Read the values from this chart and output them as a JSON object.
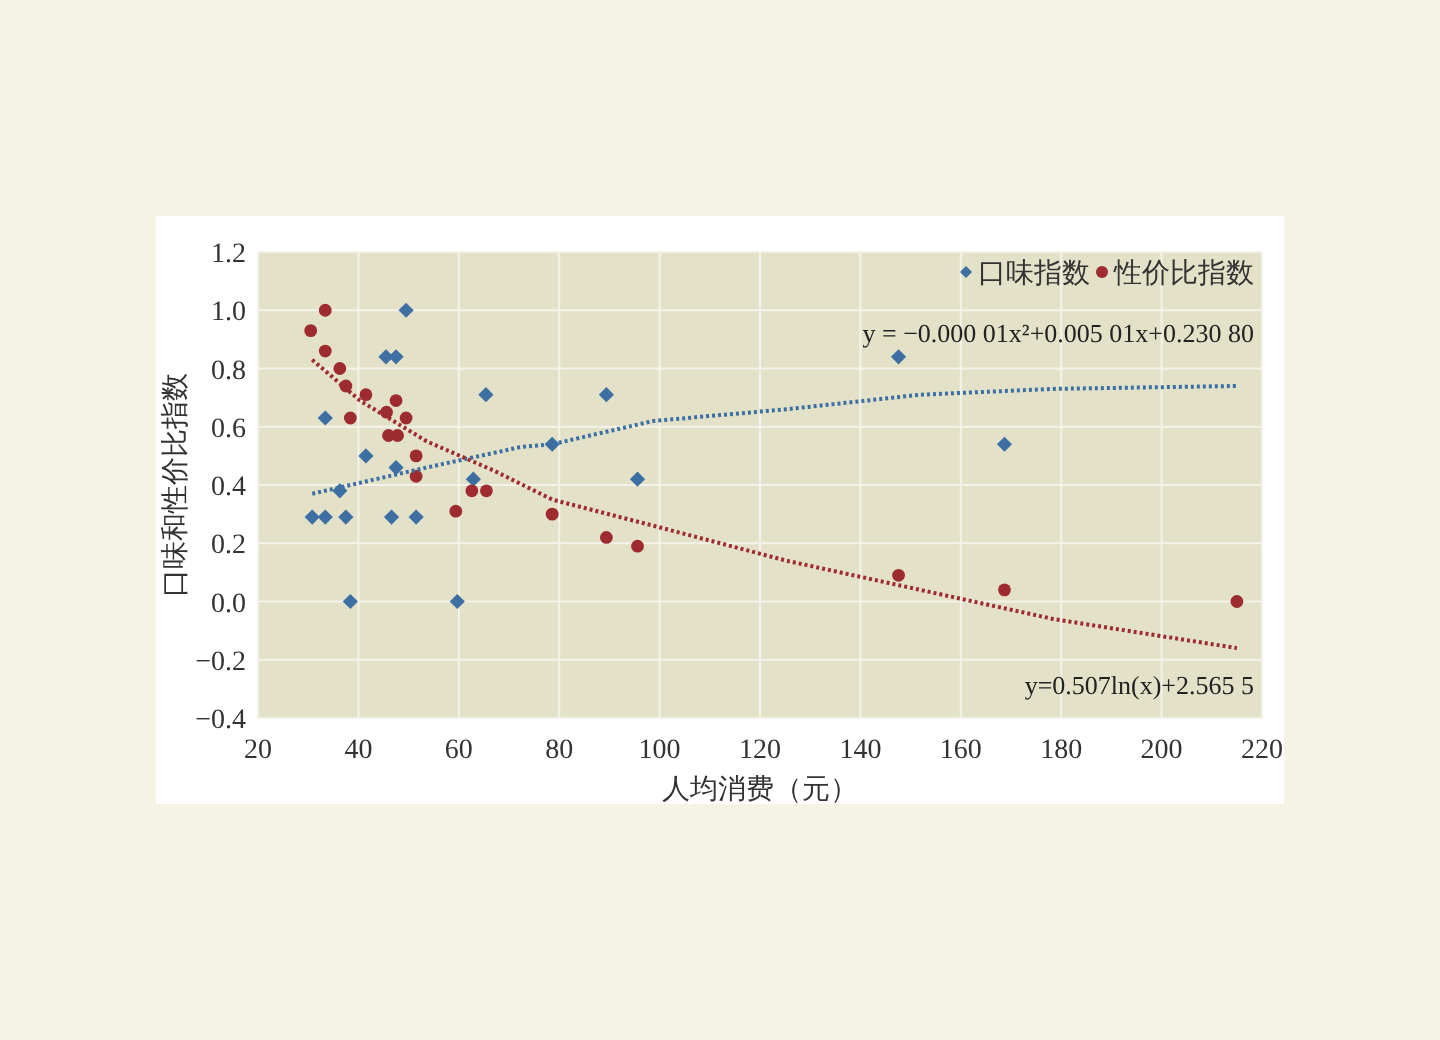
{
  "chart_data": {
    "type": "scatter",
    "xlabel": "人均消费（元）",
    "ylabel": "口味和性价比指数",
    "xlim": [
      20,
      220
    ],
    "xticks": [
      20,
      40,
      60,
      80,
      100,
      120,
      140,
      160,
      180,
      200,
      220
    ],
    "ylim": [
      -0.4,
      1.2
    ],
    "yticks": [
      {
        "value": -0.4,
        "label": "−0.4"
      },
      {
        "value": -0.2,
        "label": "−0.2"
      },
      {
        "value": 0,
        "label": "0.0"
      },
      {
        "value": 0.2,
        "label": "0.2"
      },
      {
        "value": 0.4,
        "label": "0.4"
      },
      {
        "value": 0.6,
        "label": "0.6"
      },
      {
        "value": 0.8,
        "label": "0.8"
      },
      {
        "value": 1,
        "label": "1.0"
      },
      {
        "value": 1.2,
        "label": "1.2"
      }
    ],
    "grid": true,
    "legend": "top right",
    "series": [
      {
        "name": "口味指数",
        "color": "#3d6fa3",
        "marker": "diamond",
        "x": [
          30.8,
          33.4,
          33.4,
          37.5,
          36.3,
          38.4,
          41.5,
          45.5,
          47.5,
          46.6,
          47.5,
          49.5,
          51.5,
          59.7,
          62.9,
          65.4,
          78.6,
          89.4,
          95.6,
          147.6,
          168.7
        ],
        "values": [
          0.29,
          0.29,
          0.63,
          0.29,
          0.38,
          0,
          0.5,
          0.84,
          0.84,
          0.29,
          0.46,
          1.0,
          0.29,
          0,
          0.42,
          0.71,
          0.54,
          0.71,
          0.42,
          0.84,
          0.54
        ]
      },
      {
        "name": "性价比指数",
        "color": "#9e2b30",
        "marker": "circle",
        "x": [
          30.5,
          33.4,
          33.4,
          36.3,
          37.5,
          38.4,
          41.5,
          45.6,
          47.5,
          46.0,
          47.8,
          49.5,
          51.5,
          51.5,
          59.4,
          62.6,
          65.5,
          78.6,
          89.4,
          95.6,
          147.6,
          168.7,
          215
        ],
        "values": [
          0.93,
          1.0,
          0.86,
          0.8,
          0.74,
          0.63,
          0.71,
          0.65,
          0.69,
          0.57,
          0.57,
          0.63,
          0.5,
          0.43,
          0.31,
          0.38,
          0.38,
          0.3,
          0.22,
          0.19,
          0.09,
          0.04,
          0.0
        ]
      },
      {
        "type": "line",
        "color": "#3d6fa3",
        "line_style": "dotted",
        "marker": "none",
        "x": [
          30.8,
          53.6,
          72.2,
          78.6,
          98.8,
          125.3,
          151.9,
          178.4,
          215
        ],
        "values": [
          0.37,
          0.46,
          0.53,
          0.54,
          0.62,
          0.66,
          0.71,
          0.73,
          0.74
        ]
      },
      {
        "type": "line",
        "color": "#9e2b30",
        "line_style": "dotted",
        "marker": "none",
        "x": [
          30.8,
          40.3,
          53.6,
          66.9,
          78.6,
          98.8,
          125.3,
          151.9,
          178.4,
          215
        ],
        "values": [
          0.83,
          0.69,
          0.55,
          0.45,
          0.35,
          0.26,
          0.14,
          0.04,
          -0.06,
          -0.16
        ]
      }
    ],
    "annotations": [
      "y = −0.000 01x²+0.005 01x+0.230 80",
      "y=0.507ln(x)+2.565 5"
    ]
  }
}
